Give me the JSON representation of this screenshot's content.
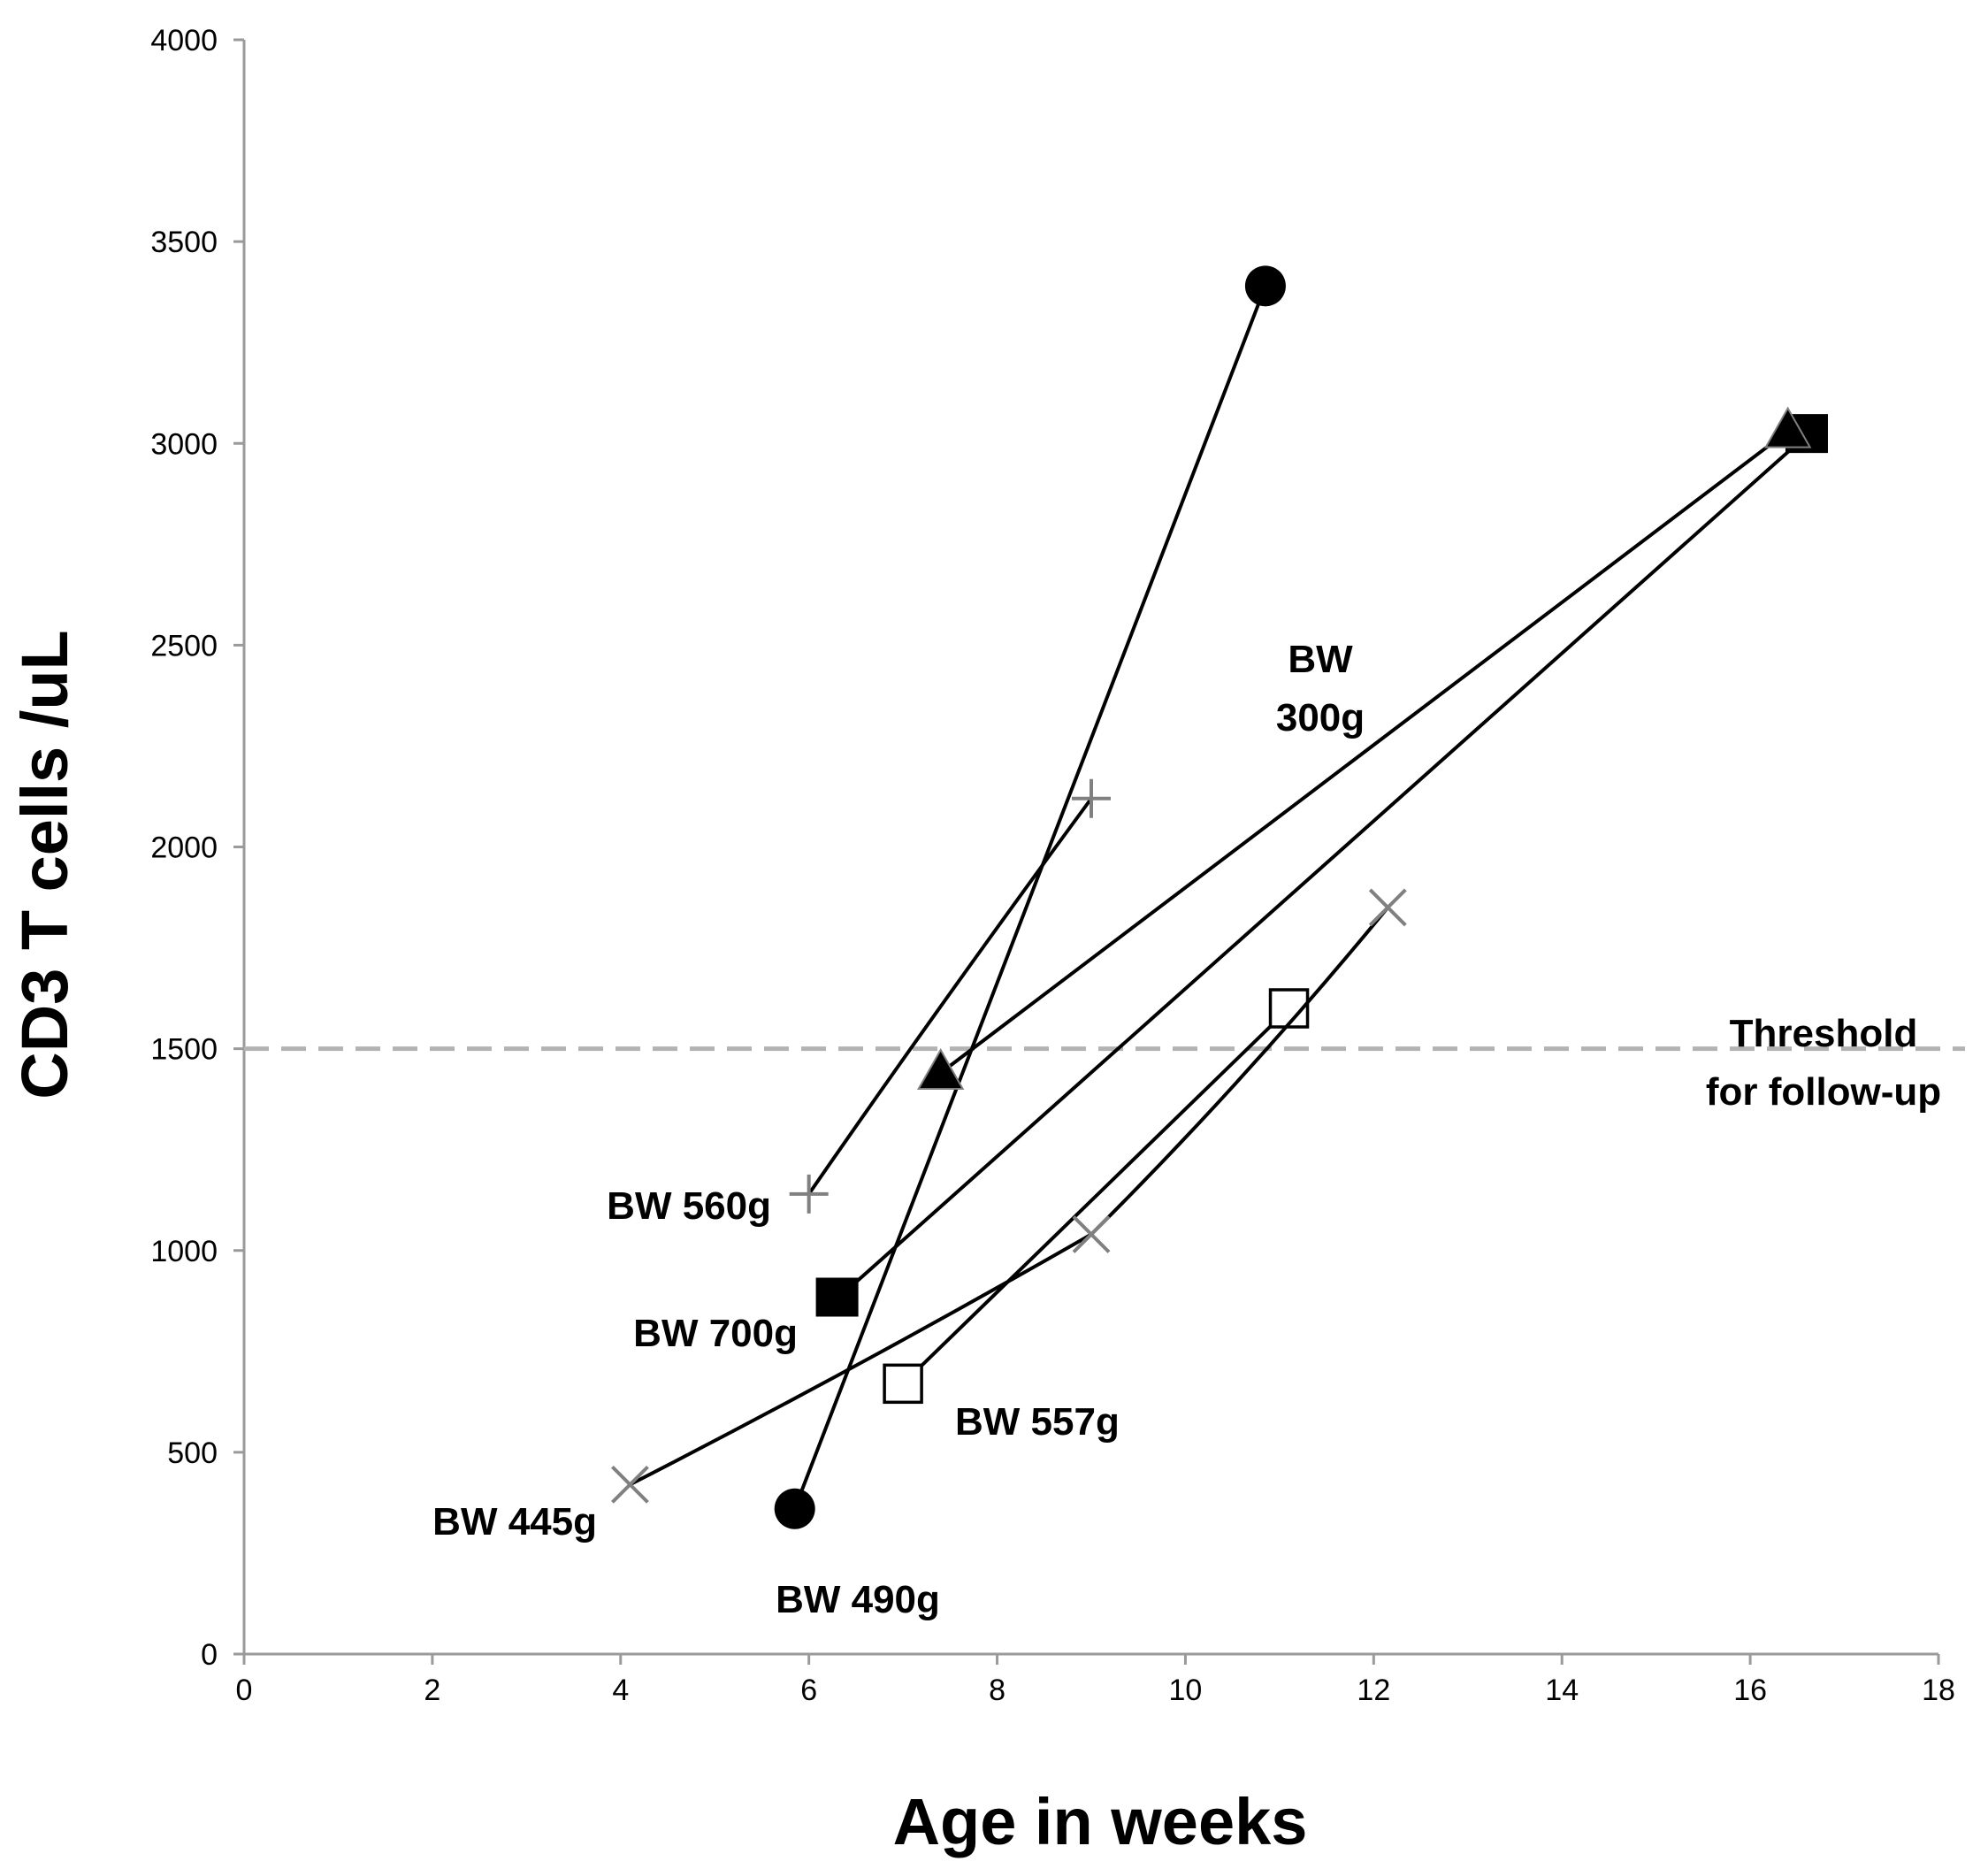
{
  "chart_data": {
    "type": "scatter",
    "xlabel": "Age in weeks",
    "ylabel": "CD3 T cells /uL",
    "xlim": [
      0,
      18
    ],
    "ylim": [
      0,
      4000
    ],
    "x_ticks": [
      0,
      2,
      4,
      6,
      8,
      10,
      12,
      14,
      16,
      18
    ],
    "y_ticks": [
      0,
      500,
      1000,
      1500,
      2000,
      2500,
      3000,
      3500,
      4000
    ],
    "grid": false,
    "threshold": {
      "value": 1500,
      "label_lines": [
        "Threshold",
        "for follow-up"
      ],
      "style": "dashed",
      "color": "#b3b3b3"
    },
    "series": [
      {
        "label": "BW 560g",
        "marker": "plus",
        "points": [
          [
            6.0,
            1140
          ],
          [
            9.0,
            2120
          ]
        ]
      },
      {
        "label": "BW 700g",
        "marker": "filled-square",
        "points": [
          [
            6.3,
            880
          ],
          [
            16.6,
            3020
          ]
        ]
      },
      {
        "label": "BW 557g",
        "marker": "open-square",
        "points": [
          [
            7.0,
            670
          ],
          [
            11.1,
            1600
          ]
        ]
      },
      {
        "label": "BW 445g",
        "marker": "x",
        "points": [
          [
            4.1,
            420
          ],
          [
            9.0,
            1040
          ],
          [
            12.15,
            1850
          ]
        ]
      },
      {
        "label": "BW 490g",
        "marker": "filled-circle",
        "points": [
          [
            5.85,
            360
          ],
          [
            10.85,
            3390
          ]
        ]
      },
      {
        "label": "BW 300g",
        "marker": "filled-triangle",
        "points": [
          [
            7.4,
            1440
          ],
          [
            16.4,
            3030
          ]
        ]
      }
    ],
    "annotations": [
      {
        "lines": [
          "BW",
          "300g"
        ]
      },
      {
        "lines": [
          "BW 560g"
        ]
      },
      {
        "lines": [
          "BW 700g"
        ]
      },
      {
        "lines": [
          "BW 557g"
        ]
      },
      {
        "lines": [
          "BW 445g"
        ]
      },
      {
        "lines": [
          "BW 490g"
        ]
      }
    ],
    "colors": {
      "line": "#000000",
      "marker_dark": "#000000",
      "marker_grey": "#808080",
      "axis": "#9a9a9a"
    }
  }
}
